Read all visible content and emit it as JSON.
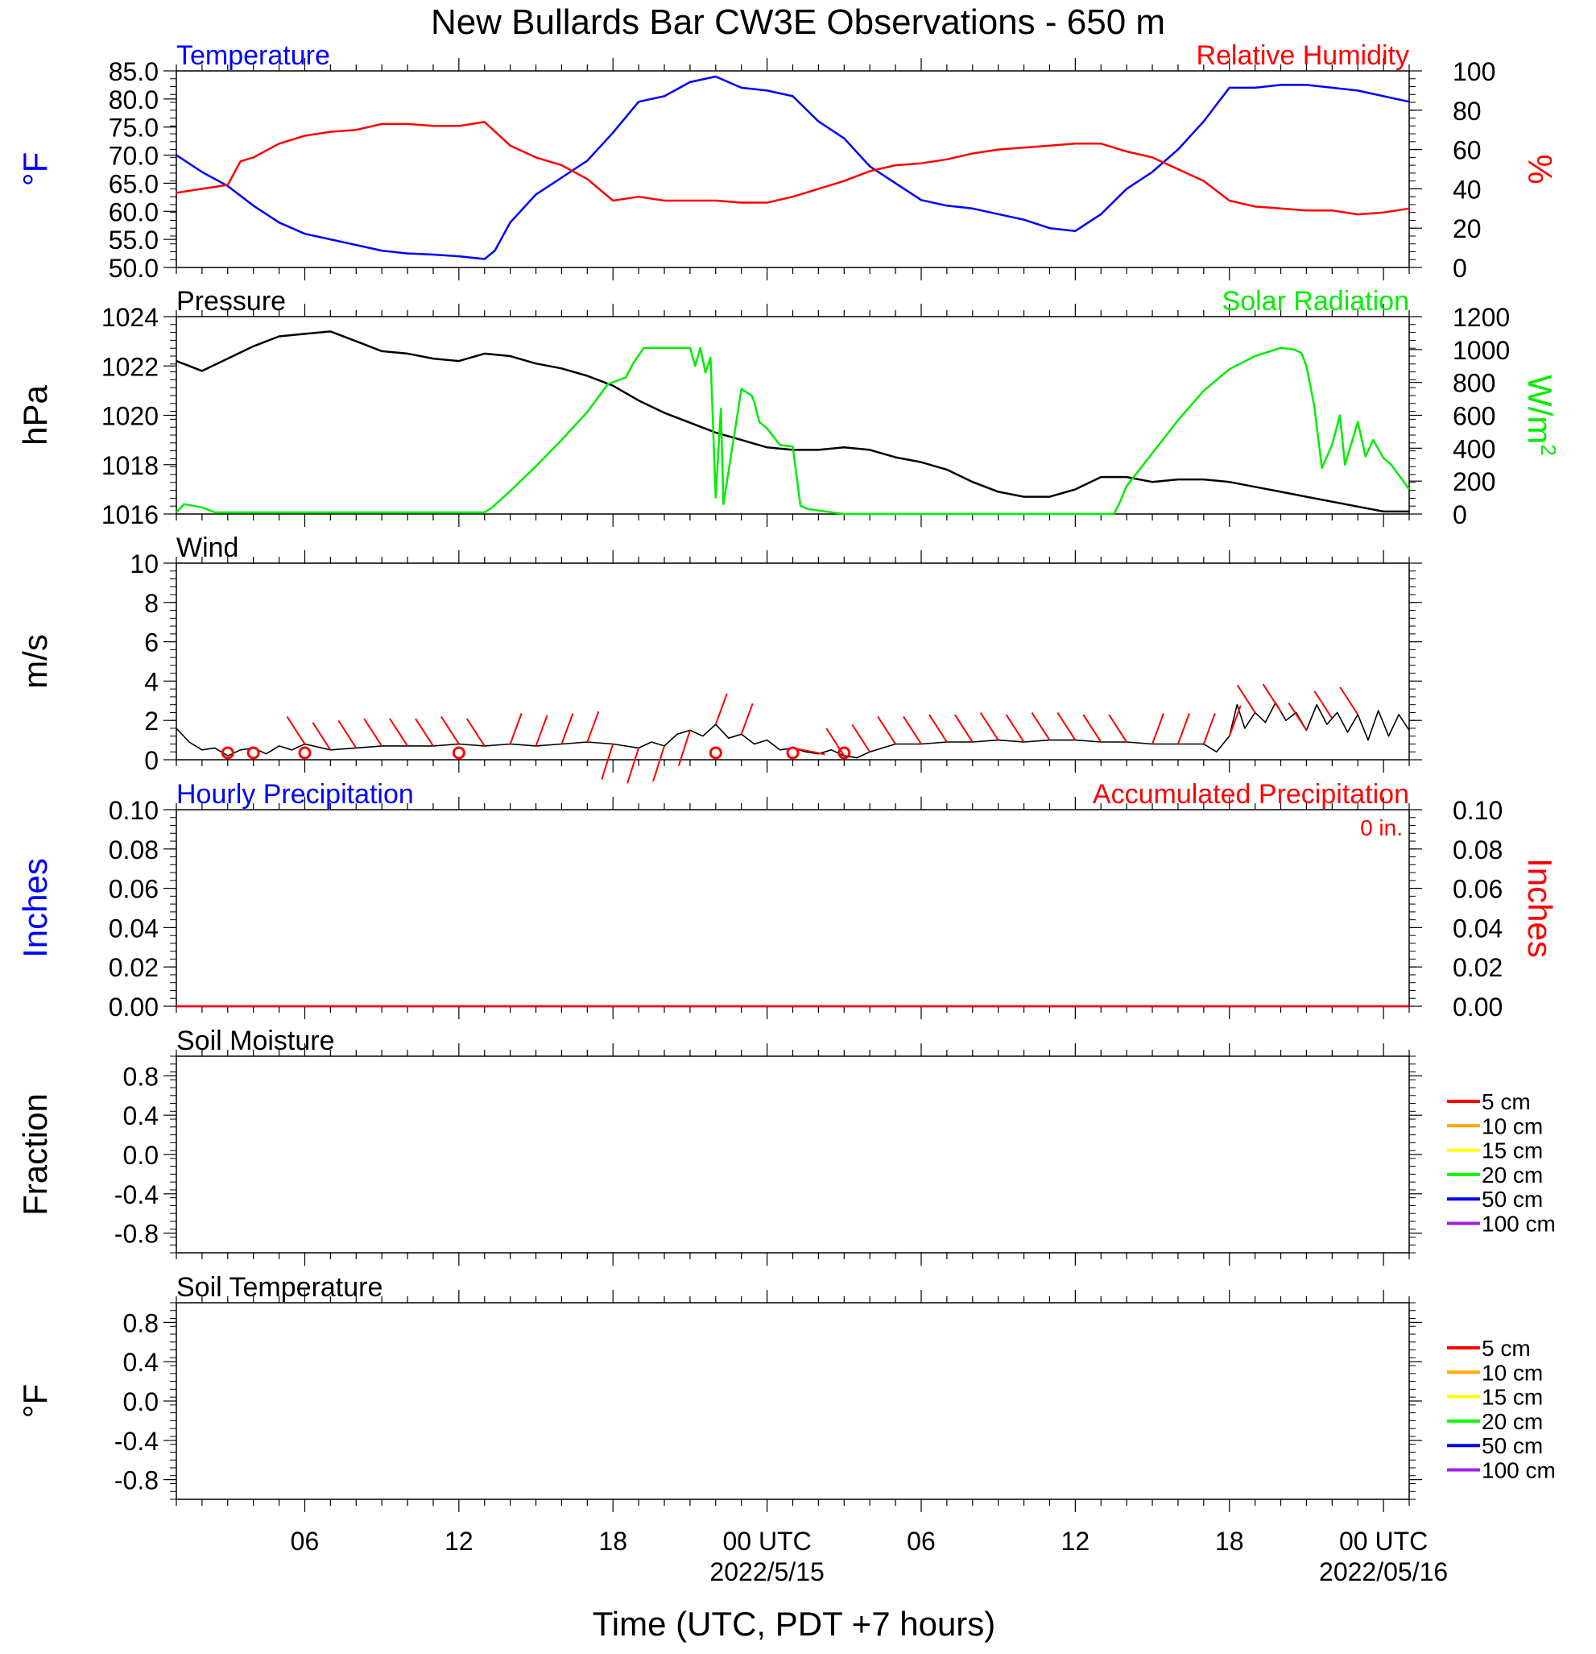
{
  "title": "New Bullards Bar CW3E Observations - 650 m",
  "x_axis": {
    "label": "Time (UTC, PDT +7 hours)",
    "range_hours": [
      0,
      48
    ],
    "tick_labels": [
      {
        "hour": 5,
        "label": "06"
      },
      {
        "hour": 11,
        "label": "12"
      },
      {
        "hour": 17,
        "label": "18"
      },
      {
        "hour": 23,
        "label": "00 UTC",
        "sub": "2022/5/15"
      },
      {
        "hour": 29,
        "label": "06"
      },
      {
        "hour": 35,
        "label": "12"
      },
      {
        "hour": 41,
        "label": "18"
      },
      {
        "hour": 47,
        "label": "00 UTC",
        "sub": "2022/05/16"
      }
    ]
  },
  "colors": {
    "temperature": "#0000ff",
    "humidity": "#ff0000",
    "pressure": "#000000",
    "solar": "#00ee00",
    "wind": "#000000",
    "barb": "#ff0000",
    "hourly_precip": "#0000ff",
    "accum_precip": "#ff0000"
  },
  "chart_data": [
    {
      "type": "line",
      "title_left": "Temperature",
      "title_right": "Relative Humidity",
      "ylabel_left": "°F",
      "ylabel_right": "%",
      "ylim_left": [
        50,
        85
      ],
      "ylim_right": [
        0,
        100
      ],
      "yticks_left": [
        "50.0",
        "55.0",
        "60.0",
        "65.0",
        "70.0",
        "75.0",
        "80.0",
        "85.0"
      ],
      "yticks_right": [
        "0",
        "20",
        "40",
        "60",
        "80",
        "100"
      ],
      "series": [
        {
          "name": "Temperature",
          "axis": "left",
          "x": [
            0,
            1,
            2,
            3,
            4,
            5,
            6,
            7,
            8,
            9,
            10,
            11,
            12,
            12.4,
            13,
            14,
            15,
            16,
            17,
            18,
            19,
            20,
            21,
            22,
            23,
            24,
            25,
            26,
            27,
            28,
            29,
            30,
            31,
            32,
            33,
            34,
            35,
            36,
            37,
            38,
            39,
            40,
            41,
            42,
            43,
            44,
            45,
            46,
            47,
            48
          ],
          "y": [
            70,
            67,
            64.5,
            61,
            58,
            56,
            55,
            54,
            53,
            52.5,
            52.3,
            52,
            51.5,
            53,
            58,
            63,
            66,
            69,
            74,
            79.5,
            80.5,
            83,
            84,
            82,
            81.5,
            80.5,
            76,
            73,
            68,
            65,
            62,
            61,
            60.5,
            59.5,
            58.5,
            57,
            56.5,
            59.5,
            64,
            67,
            71,
            76,
            82,
            82,
            82.5,
            82.5,
            82,
            81.5,
            80.5,
            79.5
          ]
        },
        {
          "name": "Relative Humidity",
          "axis": "right",
          "x": [
            0,
            1,
            2,
            2.5,
            3,
            4,
            5,
            6,
            7,
            8,
            9,
            10,
            11,
            12,
            13,
            14,
            15,
            16,
            17,
            18,
            19,
            20,
            21,
            22,
            23,
            24,
            25,
            26,
            27,
            28,
            29,
            30,
            31,
            32,
            33,
            34,
            35,
            36,
            37,
            38,
            39,
            40,
            41,
            42,
            43,
            44,
            45,
            46,
            47,
            48
          ],
          "y": [
            38,
            40,
            42,
            54,
            56,
            63,
            67,
            69,
            70,
            73,
            73,
            72,
            72,
            74,
            62,
            56,
            52,
            45,
            34,
            36,
            34,
            34,
            34,
            33,
            33,
            36,
            40,
            44,
            49,
            52,
            53,
            55,
            58,
            60,
            61,
            62,
            63,
            63,
            59,
            56,
            50,
            44,
            34,
            31,
            30,
            29,
            29,
            27,
            28,
            30
          ]
        }
      ]
    },
    {
      "type": "line",
      "title_left": "Pressure",
      "title_right": "Solar Radiation",
      "ylabel_left": "hPa",
      "ylabel_right": "W/m",
      "ylabel_right_sup": "2",
      "ylim_left": [
        1016,
        1024
      ],
      "ylim_right": [
        0,
        1200
      ],
      "yticks_left": [
        "1016",
        "1018",
        "1020",
        "1022",
        "1024"
      ],
      "yticks_right": [
        "0",
        "200",
        "400",
        "600",
        "800",
        "1000",
        "1200"
      ],
      "series": [
        {
          "name": "Pressure",
          "axis": "left",
          "x": [
            0,
            1,
            2,
            3,
            4,
            5,
            6,
            7,
            8,
            9,
            10,
            11,
            12,
            13,
            14,
            15,
            16,
            17,
            18,
            19,
            20,
            21,
            22,
            23,
            24,
            25,
            26,
            27,
            28,
            29,
            30,
            31,
            32,
            33,
            34,
            35,
            36,
            37,
            38,
            39,
            40,
            41,
            42,
            43,
            44,
            45,
            46,
            47,
            48
          ],
          "y": [
            1022.2,
            1021.8,
            1022.3,
            1022.8,
            1023.2,
            1023.3,
            1023.4,
            1023.0,
            1022.6,
            1022.5,
            1022.3,
            1022.2,
            1022.5,
            1022.4,
            1022.1,
            1021.9,
            1021.6,
            1021.2,
            1020.6,
            1020.1,
            1019.7,
            1019.3,
            1019.0,
            1018.7,
            1018.6,
            1018.6,
            1018.7,
            1018.6,
            1018.3,
            1018.1,
            1017.8,
            1017.3,
            1016.9,
            1016.7,
            1016.7,
            1017.0,
            1017.5,
            1017.5,
            1017.3,
            1017.4,
            1017.4,
            1017.3,
            1017.1,
            1016.9,
            1016.7,
            1016.5,
            1016.3,
            1016.1,
            1016.1
          ]
        },
        {
          "name": "Solar Radiation",
          "axis": "right",
          "x": [
            0,
            0.3,
            1,
            1.5,
            12,
            12.3,
            13,
            14,
            15,
            16,
            16.8,
            17.5,
            17.8,
            18.2,
            19,
            20,
            20.2,
            20.4,
            20.6,
            20.8,
            21,
            21.2,
            21.3,
            22,
            22.4,
            22.5,
            22.7,
            23,
            23.5,
            24,
            24.3,
            24.6,
            26,
            36.5,
            36.7,
            37,
            38,
            39,
            40,
            41,
            42,
            43,
            43.5,
            43.8,
            44,
            44.3,
            44.6,
            45,
            45.3,
            45.5,
            46,
            46.3,
            46.6,
            47,
            47.3,
            48
          ],
          "y": [
            10,
            60,
            40,
            10,
            10,
            40,
            140,
            290,
            450,
            620,
            790,
            830,
            920,
            1010,
            1010,
            1010,
            900,
            1010,
            860,
            950,
            100,
            640,
            60,
            760,
            720,
            680,
            560,
            520,
            420,
            410,
            50,
            30,
            0,
            0,
            60,
            170,
            370,
            570,
            750,
            880,
            960,
            1010,
            1000,
            980,
            900,
            660,
            280,
            420,
            600,
            300,
            560,
            350,
            450,
            340,
            300,
            150
          ]
        }
      ]
    },
    {
      "type": "line",
      "title_left": "Wind",
      "ylabel_left": "m/s",
      "ylim_left": [
        0,
        10
      ],
      "yticks_left": [
        "0",
        "2",
        "4",
        "6",
        "8",
        "10"
      ],
      "series": [
        {
          "name": "Wind",
          "axis": "left",
          "x": [
            0,
            0.5,
            1,
            1.5,
            2,
            2.5,
            3,
            3.5,
            4,
            4.5,
            5,
            6,
            7,
            8,
            9,
            10,
            11,
            12,
            13,
            14,
            15,
            16,
            17,
            18,
            18.5,
            19,
            19.5,
            20,
            20.5,
            21,
            21.5,
            22,
            22.5,
            23,
            23.5,
            24,
            24.5,
            25,
            25.5,
            26,
            26.5,
            27,
            28,
            29,
            30,
            31,
            32,
            33,
            34,
            35,
            36,
            37,
            38,
            39,
            40,
            40.5,
            41,
            41.3,
            41.6,
            42,
            42.4,
            42.8,
            43.2,
            43.6,
            44,
            44.4,
            44.8,
            45.2,
            45.6,
            46,
            46.4,
            46.8,
            47.2,
            47.6,
            48
          ],
          "y": [
            1.6,
            0.9,
            0.5,
            0.6,
            0.2,
            0.5,
            0.6,
            0.3,
            0.7,
            0.5,
            0.8,
            0.5,
            0.6,
            0.7,
            0.7,
            0.7,
            0.8,
            0.7,
            0.8,
            0.7,
            0.8,
            0.9,
            0.8,
            0.6,
            0.9,
            0.7,
            1.3,
            1.5,
            1.2,
            1.8,
            1.1,
            1.3,
            0.8,
            1.0,
            0.5,
            0.6,
            0.4,
            0.3,
            0.5,
            0.2,
            0.1,
            0.4,
            0.8,
            0.8,
            0.9,
            0.9,
            1.0,
            0.9,
            1.0,
            1.0,
            0.9,
            0.9,
            0.8,
            0.8,
            0.8,
            0.4,
            1.2,
            2.8,
            1.6,
            2.4,
            1.9,
            2.9,
            2.0,
            2.4,
            1.5,
            2.8,
            1.8,
            2.4,
            1.4,
            2.3,
            1.0,
            2.5,
            1.2,
            2.3,
            1.5
          ]
        }
      ],
      "barb_hours": [
        5,
        6,
        7,
        8,
        9,
        10,
        11,
        12,
        13,
        14,
        15,
        16,
        17,
        18,
        19,
        20,
        21,
        22,
        24,
        26,
        27,
        28,
        29,
        30,
        31,
        32,
        33,
        34,
        35,
        36,
        37,
        38,
        39,
        40,
        41,
        42,
        43,
        44,
        45,
        46
      ],
      "calm_hours": [
        2,
        3,
        5,
        11,
        21,
        24,
        26
      ]
    },
    {
      "type": "line",
      "title_left": "Hourly Precipitation",
      "title_right": "Accumulated Precipitation",
      "annotation": "0 in.",
      "ylabel_left": "Inches",
      "ylabel_right": "Inches",
      "ylim_left": [
        0,
        0.1
      ],
      "ylim_right": [
        0,
        0.1
      ],
      "yticks_left": [
        "0.00",
        "0.02",
        "0.04",
        "0.06",
        "0.08",
        "0.10"
      ],
      "yticks_right": [
        "0.00",
        "0.02",
        "0.04",
        "0.06",
        "0.08",
        "0.10"
      ],
      "series": [
        {
          "name": "Hourly Precipitation",
          "axis": "left",
          "x": [
            0,
            48
          ],
          "y": [
            0,
            0
          ]
        },
        {
          "name": "Accumulated Precipitation",
          "axis": "right",
          "x": [
            0,
            48
          ],
          "y": [
            0,
            0
          ]
        }
      ]
    },
    {
      "type": "line",
      "title_left": "Soil Moisture",
      "ylabel_left": "Fraction",
      "ylim_left": [
        -1,
        1
      ],
      "yticks_left": [
        "-0.8",
        "-0.4",
        "0.0",
        "0.4",
        "0.8"
      ],
      "series": [],
      "legend": [
        {
          "label": "5 cm",
          "color": "#ff0000"
        },
        {
          "label": "10 cm",
          "color": "#ffa500"
        },
        {
          "label": "15 cm",
          "color": "#ffff00"
        },
        {
          "label": "20 cm",
          "color": "#00ff00"
        },
        {
          "label": "50 cm",
          "color": "#0000ff"
        },
        {
          "label": "100 cm",
          "color": "#a020f0"
        }
      ]
    },
    {
      "type": "line",
      "title_left": "Soil Temperature",
      "ylabel_left": "°F",
      "ylim_left": [
        -1,
        1
      ],
      "yticks_left": [
        "-0.8",
        "-0.4",
        "0.0",
        "0.4",
        "0.8"
      ],
      "series": [],
      "legend": [
        {
          "label": "5 cm",
          "color": "#ff0000"
        },
        {
          "label": "10 cm",
          "color": "#ffa500"
        },
        {
          "label": "15 cm",
          "color": "#ffff00"
        },
        {
          "label": "20 cm",
          "color": "#00ff00"
        },
        {
          "label": "50 cm",
          "color": "#0000ff"
        },
        {
          "label": "100 cm",
          "color": "#a020f0"
        }
      ]
    }
  ]
}
